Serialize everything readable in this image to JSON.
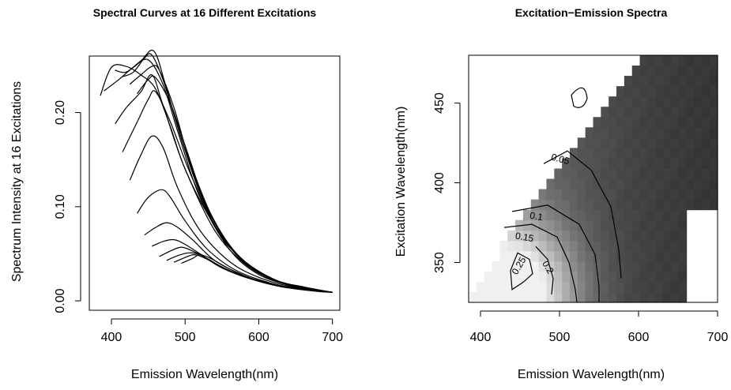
{
  "chart_data": [
    {
      "type": "line",
      "title": "Spectral Curves at 16 Different Excitations",
      "xlabel": "Emission Wavelength(nm)",
      "ylabel": "Spectrum Intensity at 16 Excitations",
      "xlim": [
        370,
        710
      ],
      "ylim": [
        -0.01,
        0.26
      ],
      "xticks": [
        400,
        500,
        600,
        700
      ],
      "yticks": [
        0.0,
        0.1,
        0.2
      ],
      "ytick_labels": [
        "0.00",
        "0.10",
        "0.20"
      ],
      "series": [
        {
          "x": [
            385,
            400,
            420,
            440,
            460,
            480,
            500,
            540,
            580,
            620,
            660,
            700
          ],
          "y": [
            0.218,
            0.248,
            0.249,
            0.24,
            0.225,
            0.185,
            0.14,
            0.075,
            0.04,
            0.022,
            0.013,
            0.009
          ]
        },
        {
          "x": [
            390,
            410,
            430,
            450,
            470,
            490,
            520,
            560,
            600,
            650,
            700
          ],
          "y": [
            0.223,
            0.235,
            0.248,
            0.256,
            0.23,
            0.18,
            0.11,
            0.055,
            0.028,
            0.015,
            0.009
          ]
        },
        {
          "x": [
            405,
            420,
            440,
            458,
            475,
            500,
            540,
            580,
            620,
            660,
            700
          ],
          "y": [
            0.245,
            0.243,
            0.255,
            0.265,
            0.225,
            0.16,
            0.08,
            0.042,
            0.023,
            0.013,
            0.009
          ]
        },
        {
          "x": [
            415,
            430,
            445,
            455,
            470,
            490,
            520,
            560,
            600,
            650,
            700
          ],
          "y": [
            0.238,
            0.243,
            0.258,
            0.261,
            0.235,
            0.185,
            0.115,
            0.058,
            0.03,
            0.015,
            0.009
          ]
        },
        {
          "x": [
            425,
            440,
            455,
            465,
            485,
            510,
            550,
            600,
            650,
            700
          ],
          "y": [
            0.23,
            0.24,
            0.249,
            0.245,
            0.205,
            0.14,
            0.07,
            0.03,
            0.016,
            0.009
          ]
        },
        {
          "x": [
            435,
            450,
            460,
            480,
            500,
            530,
            570,
            620,
            660,
            700
          ],
          "y": [
            0.22,
            0.235,
            0.237,
            0.21,
            0.165,
            0.1,
            0.05,
            0.023,
            0.015,
            0.009
          ]
        },
        {
          "x": [
            405,
            420,
            440,
            455,
            470,
            500,
            540,
            580,
            620,
            660,
            700
          ],
          "y": [
            0.188,
            0.205,
            0.222,
            0.24,
            0.208,
            0.14,
            0.08,
            0.042,
            0.023,
            0.014,
            0.009
          ]
        },
        {
          "x": [
            415,
            435,
            450,
            460,
            480,
            510,
            550,
            600,
            650,
            700
          ],
          "y": [
            0.158,
            0.19,
            0.214,
            0.222,
            0.19,
            0.13,
            0.068,
            0.03,
            0.016,
            0.009
          ]
        },
        {
          "x": [
            425,
            440,
            455,
            470,
            490,
            520,
            560,
            600,
            650,
            700
          ],
          "y": [
            0.128,
            0.155,
            0.175,
            0.163,
            0.12,
            0.075,
            0.042,
            0.025,
            0.014,
            0.009
          ]
        },
        {
          "x": [
            435,
            450,
            468,
            480,
            500,
            530,
            570,
            620,
            660,
            700
          ],
          "y": [
            0.093,
            0.11,
            0.118,
            0.11,
            0.085,
            0.055,
            0.032,
            0.018,
            0.012,
            0.009
          ]
        },
        {
          "x": [
            445,
            460,
            475,
            490,
            510,
            540,
            580,
            620,
            660,
            700
          ],
          "y": [
            0.07,
            0.078,
            0.083,
            0.078,
            0.065,
            0.043,
            0.027,
            0.017,
            0.012,
            0.009
          ]
        },
        {
          "x": [
            455,
            470,
            485,
            500,
            520,
            550,
            590,
            630,
            670,
            700
          ],
          "y": [
            0.058,
            0.063,
            0.065,
            0.06,
            0.05,
            0.035,
            0.023,
            0.015,
            0.011,
            0.009
          ]
        },
        {
          "x": [
            465,
            480,
            495,
            510,
            530,
            560,
            600,
            640,
            680,
            700
          ],
          "y": [
            0.047,
            0.053,
            0.057,
            0.053,
            0.045,
            0.032,
            0.021,
            0.014,
            0.01,
            0.009
          ]
        },
        {
          "x": [
            475,
            490,
            505,
            520,
            540,
            570,
            610,
            650,
            700
          ],
          "y": [
            0.043,
            0.048,
            0.051,
            0.049,
            0.04,
            0.029,
            0.019,
            0.013,
            0.009
          ]
        },
        {
          "x": [
            485,
            500,
            512,
            525,
            545,
            575,
            615,
            655,
            700
          ],
          "y": [
            0.041,
            0.046,
            0.049,
            0.046,
            0.038,
            0.027,
            0.018,
            0.013,
            0.009
          ]
        },
        {
          "x": [
            495,
            510,
            520,
            535,
            555,
            585,
            625,
            660,
            700
          ],
          "y": [
            0.04,
            0.045,
            0.049,
            0.045,
            0.036,
            0.025,
            0.017,
            0.012,
            0.009
          ]
        }
      ]
    },
    {
      "type": "heatmap",
      "title": "Excitation−Emission Spectra",
      "xlabel": "Emission Wavelength(nm)",
      "ylabel": "Excitation Wavelength(nm)",
      "xlim": [
        385,
        700
      ],
      "ylim": [
        325,
        480
      ],
      "xticks": [
        400,
        500,
        600,
        700
      ],
      "yticks": [
        350,
        400,
        450
      ],
      "colorscale": "gray (light = high intensity, dark = low intensity)",
      "contour_labels": [
        "0.05",
        "0.1",
        "0.15",
        "0.2",
        "0.25"
      ],
      "background_color": "#ffffff",
      "low_color": "#2b2b2b",
      "high_color": "#f0f0f0"
    }
  ]
}
